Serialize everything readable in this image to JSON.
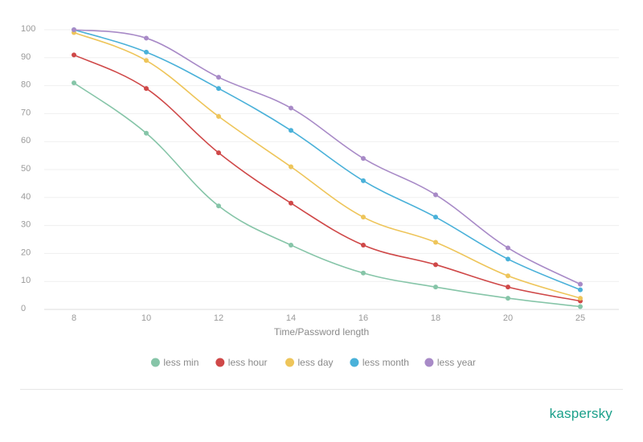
{
  "chart_data": {
    "type": "line",
    "xlabel": "Time/Password length",
    "ylabel": "",
    "categories": [
      "8",
      "10",
      "12",
      "14",
      "16",
      "18",
      "20",
      "25"
    ],
    "yticks": [
      "0",
      "10",
      "20",
      "30",
      "40",
      "50",
      "60",
      "70",
      "80",
      "90",
      "100"
    ],
    "ylim": [
      0,
      100
    ],
    "grid": true,
    "legend_position": "bottom",
    "series": [
      {
        "name": "less min",
        "color": "#86c5a8",
        "values": [
          81,
          63,
          37,
          23,
          13,
          8,
          4,
          1
        ]
      },
      {
        "name": "less hour",
        "color": "#cf4848",
        "values": [
          91,
          79,
          56,
          38,
          23,
          16,
          8,
          3
        ]
      },
      {
        "name": "less day",
        "color": "#eec55a",
        "values": [
          99,
          89,
          69,
          51,
          33,
          24,
          12,
          4
        ]
      },
      {
        "name": "less month",
        "color": "#4ab1d9",
        "values": [
          100,
          92,
          79,
          64,
          46,
          33,
          18,
          7
        ]
      },
      {
        "name": "less year",
        "color": "#a88ac7",
        "values": [
          100,
          97,
          83,
          72,
          54,
          41,
          22,
          9
        ]
      }
    ]
  },
  "brand": "kaspersky",
  "brand_color": "#1aa08a"
}
